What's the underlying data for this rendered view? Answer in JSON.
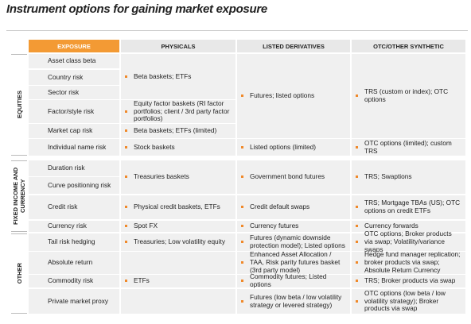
{
  "header": {
    "title": "Instrument options for gaining market exposure"
  },
  "table": {
    "columns": [
      "EXPOSURE",
      "PHYSICALS",
      "LISTED DERIVATIVES",
      "OTC/OTHER SYNTHETIC"
    ],
    "groups": [
      {
        "label": "EQUITIES",
        "rows": [
          "Asset class beta",
          "Country risk",
          "Sector risk",
          "Factor/style risk",
          "Market cap risk",
          "Individual name risk"
        ]
      },
      {
        "label": "FIXED INCOME AND CURRENCY",
        "rows": [
          "Duration risk",
          "Curve positioning risk",
          "Credit risk",
          "Currency risk"
        ]
      },
      {
        "label": "OTHER",
        "rows": [
          "Tail risk hedging",
          "Absolute return",
          "Commodity risk",
          "Private market proxy"
        ]
      }
    ],
    "physicals": [
      "Beta baskets; ETFs",
      "Equity factor baskets (RI factor portfolios; client / 3rd party factor portfolios)",
      "Beta baskets; ETFs (limited)",
      "Stock baskets",
      "Treasuries baskets",
      "Physical credit baskets, ETFs",
      "Spot FX",
      "Treasuries; Low volatility equity",
      "ETFs"
    ],
    "listed": [
      "Futures; listed options",
      "Listed options (limited)",
      "Government bond futures",
      "Credit default swaps",
      "Currency futures",
      "Futures (dynamic downside protection model); Listed options",
      "Enhanced Asset Allocation / TAA, Risk parity futures basket (3rd party model)",
      "Commodity futures; Listed options",
      "Futures (low beta / low volatility strategy or levered strategy)"
    ],
    "otc": [
      "TRS (custom or index); OTC options",
      "OTC options (limited); custom TRS",
      "TRS; Swaptions",
      "TRS; Mortgage TBAs (US); OTC options on credit ETFs",
      "Currency forwards",
      "OTC options; Broker products via swap; Volatility/variance swaps",
      "Hedge fund manager replication; broker products via swap; Absolute Return Currency",
      "TRS; Broker products via swap",
      "OTC options (low beta / low volatility strategy); Broker products via swap"
    ]
  }
}
